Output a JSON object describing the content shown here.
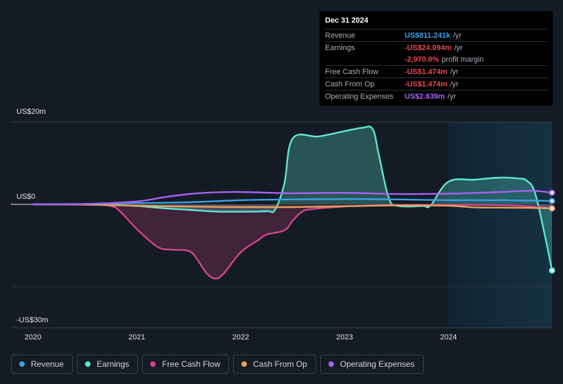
{
  "tooltip": {
    "date": "Dec 31 2024",
    "rows": [
      {
        "label": "Revenue",
        "value": "US$811.241k",
        "unit": "/yr",
        "color": "#3ba0e6"
      },
      {
        "label": "Earnings",
        "value": "-US$24.094m",
        "unit": "/yr",
        "color": "#e8484f"
      },
      {
        "label": "",
        "value": "-2,970.0%",
        "unit": "profit margin",
        "color": "#e8484f"
      },
      {
        "label": "Free Cash Flow",
        "value": "-US$1.474m",
        "unit": "/yr",
        "color": "#e8484f"
      },
      {
        "label": "Cash From Op",
        "value": "-US$1.474m",
        "unit": "/yr",
        "color": "#e8484f"
      },
      {
        "label": "Operating Expenses",
        "value": "US$2.839m",
        "unit": "/yr",
        "color": "#a463f2"
      }
    ]
  },
  "legend": [
    {
      "label": "Revenue",
      "color": "#3ba0e6"
    },
    {
      "label": "Earnings",
      "color": "#5ee8d4"
    },
    {
      "label": "Free Cash Flow",
      "color": "#d6458a"
    },
    {
      "label": "Cash From Op",
      "color": "#e8a25c"
    },
    {
      "label": "Operating Expenses",
      "color": "#a463f2"
    }
  ],
  "chart_data": {
    "type": "area",
    "title": "",
    "xlabel": "",
    "ylabel": "",
    "y_tick_labels": [
      "US$20m",
      "US$0",
      "-US$30m"
    ],
    "y_tick_values": [
      20,
      0,
      -30
    ],
    "x_tick_labels": [
      "2020",
      "2021",
      "2022",
      "2023",
      "2024"
    ],
    "x_tick_values": [
      2020,
      2021,
      2022,
      2023,
      2024
    ],
    "xlim": [
      2019.8,
      2025.0
    ],
    "ylim": [
      -30,
      20
    ],
    "forecast_shading_from": 2024.0,
    "grid": true,
    "legend_position": "bottom",
    "series": [
      {
        "name": "Revenue",
        "color": "#3ba0e6",
        "x": [
          2020.0,
          2020.5,
          2021.0,
          2021.5,
          2022.0,
          2022.5,
          2023.0,
          2023.5,
          2024.0,
          2024.5,
          2024.95,
          2025.0
        ],
        "values": [
          0.0,
          0.1,
          0.3,
          0.5,
          1.0,
          1.2,
          1.3,
          1.2,
          1.0,
          1.0,
          0.85,
          0.81
        ]
      },
      {
        "name": "Earnings",
        "color": "#5ee8d4",
        "x": [
          2020.0,
          2020.5,
          2020.75,
          2021.0,
          2021.25,
          2021.5,
          2021.75,
          2022.0,
          2022.25,
          2022.33,
          2022.42,
          2022.5,
          2022.75,
          2023.0,
          2023.17,
          2023.27,
          2023.33,
          2023.42,
          2023.5,
          2023.75,
          2023.83,
          2024.0,
          2024.25,
          2024.5,
          2024.67,
          2024.75,
          2024.83,
          2024.92,
          2025.0
        ],
        "values": [
          0.0,
          0.0,
          -0.1,
          -0.6,
          -1.4,
          -2.0,
          -2.6,
          -2.7,
          -2.5,
          -2.0,
          5.0,
          16.0,
          16.5,
          17.8,
          18.6,
          18.3,
          12.0,
          2.0,
          -0.5,
          -0.6,
          -0.3,
          5.5,
          6.0,
          6.5,
          6.3,
          5.8,
          3.0,
          -10.0,
          -24.1
        ]
      },
      {
        "name": "Free Cash Flow",
        "color": "#d6458a",
        "x": [
          2020.0,
          2020.5,
          2020.75,
          2020.85,
          2021.0,
          2021.2,
          2021.33,
          2021.5,
          2021.58,
          2021.67,
          2021.75,
          2021.83,
          2022.0,
          2022.17,
          2022.25,
          2022.42,
          2022.5,
          2022.58,
          2022.67,
          2023.0,
          2023.33,
          2023.5,
          2024.0,
          2024.5,
          2024.8,
          2025.0
        ],
        "values": [
          0.0,
          -0.1,
          -0.6,
          -3.0,
          -9.0,
          -15.5,
          -16.5,
          -17.0,
          -20.0,
          -25.0,
          -27.0,
          -25.5,
          -17.5,
          -13.0,
          -11.0,
          -9.5,
          -6.0,
          -3.0,
          -1.8,
          -0.8,
          -0.3,
          -0.2,
          -0.2,
          -0.3,
          -0.8,
          -1.47
        ]
      },
      {
        "name": "Cash From Op",
        "color": "#e8a25c",
        "x": [
          2020.0,
          2020.5,
          2021.0,
          2021.5,
          2022.0,
          2022.5,
          2023.0,
          2023.5,
          2024.0,
          2024.25,
          2024.5,
          2024.8,
          2025.0
        ],
        "values": [
          0.0,
          -0.1,
          -0.5,
          -0.8,
          -1.0,
          -1.0,
          -0.7,
          -0.4,
          -0.5,
          -1.1,
          -1.2,
          -1.3,
          -1.47
        ]
      },
      {
        "name": "Operating Expenses",
        "color": "#a463f2",
        "x": [
          2020.0,
          2020.5,
          2021.0,
          2021.25,
          2021.5,
          2021.75,
          2022.0,
          2022.5,
          2023.0,
          2023.5,
          2024.0,
          2024.5,
          2024.8,
          2025.0
        ],
        "values": [
          0.0,
          0.1,
          0.7,
          1.7,
          2.5,
          2.9,
          3.0,
          2.7,
          2.8,
          2.5,
          2.6,
          3.0,
          3.3,
          2.84
        ]
      }
    ]
  }
}
